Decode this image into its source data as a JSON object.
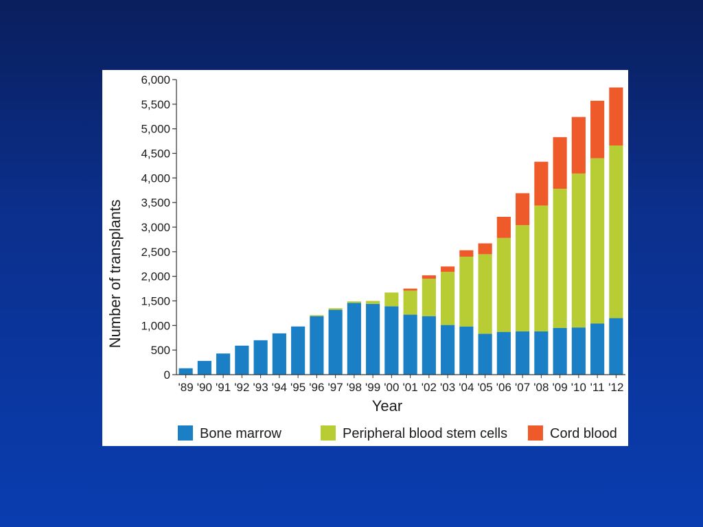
{
  "chart_data": {
    "type": "bar",
    "stacked": true,
    "xlabel": "Year",
    "ylabel": "Number of transplants",
    "ylim": [
      0,
      6000
    ],
    "yticks": [
      "0",
      "500",
      "1,000",
      "1,500",
      "2,000",
      "2,500",
      "3,000",
      "3,500",
      "4,000",
      "4,500",
      "5,000",
      "5,500",
      "6,000"
    ],
    "ytick_values": [
      0,
      500,
      1000,
      1500,
      2000,
      2500,
      3000,
      3500,
      4000,
      4500,
      5000,
      5500,
      6000
    ],
    "categories": [
      "'89",
      "'90",
      "'91",
      "'92",
      "'93",
      "'94",
      "'95",
      "'96",
      "'97",
      "'98",
      "'99",
      "'00",
      "'01",
      "'02",
      "'03",
      "'04",
      "'05",
      "'06",
      "'07",
      "'08",
      "'09",
      "'10",
      "'11",
      "'12"
    ],
    "series": [
      {
        "name": "Bone marrow",
        "color": "#1a7fc4",
        "values": [
          130,
          280,
          430,
          590,
          700,
          840,
          980,
          1190,
          1320,
          1460,
          1440,
          1390,
          1220,
          1190,
          1010,
          980,
          830,
          870,
          880,
          880,
          950,
          960,
          1040,
          1150
        ]
      },
      {
        "name": "Peripheral blood stem cells",
        "color": "#b8cc34",
        "values": [
          0,
          0,
          0,
          0,
          0,
          0,
          0,
          20,
          30,
          30,
          60,
          280,
          490,
          760,
          1080,
          1420,
          1620,
          1910,
          2160,
          2560,
          2830,
          3130,
          3360,
          3510
        ]
      },
      {
        "name": "Cord blood",
        "color": "#ef5a2b",
        "values": [
          0,
          0,
          0,
          0,
          0,
          0,
          0,
          0,
          0,
          0,
          0,
          0,
          40,
          70,
          110,
          130,
          220,
          430,
          650,
          890,
          1050,
          1150,
          1170,
          1180
        ]
      }
    ],
    "legend_position": "bottom",
    "grid": false
  }
}
